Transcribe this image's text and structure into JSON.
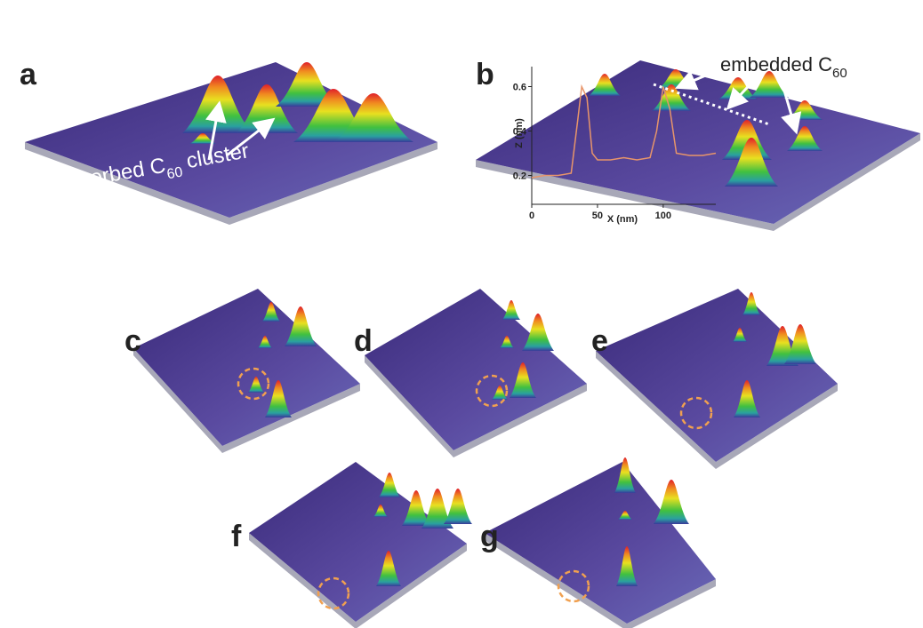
{
  "panels": [
    {
      "label": "a",
      "annotation": {
        "text": "adsorbed C",
        "subscript": "60",
        "suffix": " cluster"
      }
    },
    {
      "label": "b",
      "annotation": {
        "text": "embedded C",
        "subscript": "60"
      },
      "inset": {
        "type": "line",
        "y_label": "Z (nm)",
        "x_label": "X (nm)",
        "xlim": [
          0,
          140
        ],
        "ylim": [
          0.07,
          0.69
        ],
        "xticks": [
          0,
          50,
          100
        ],
        "yticks": [
          0.2,
          0.4,
          0.6
        ],
        "color": "#e8956a",
        "x": [
          0,
          10,
          20,
          30,
          35,
          38,
          42,
          46,
          50,
          60,
          70,
          80,
          90,
          95,
          100,
          105,
          110,
          120,
          130,
          140
        ],
        "values": [
          0.19,
          0.2,
          0.2,
          0.21,
          0.45,
          0.6,
          0.55,
          0.3,
          0.27,
          0.27,
          0.28,
          0.27,
          0.28,
          0.4,
          0.6,
          0.5,
          0.3,
          0.29,
          0.29,
          0.3
        ]
      }
    },
    {
      "label": "c"
    },
    {
      "label": "d"
    },
    {
      "label": "e"
    },
    {
      "label": "f"
    },
    {
      "label": "g"
    }
  ]
}
